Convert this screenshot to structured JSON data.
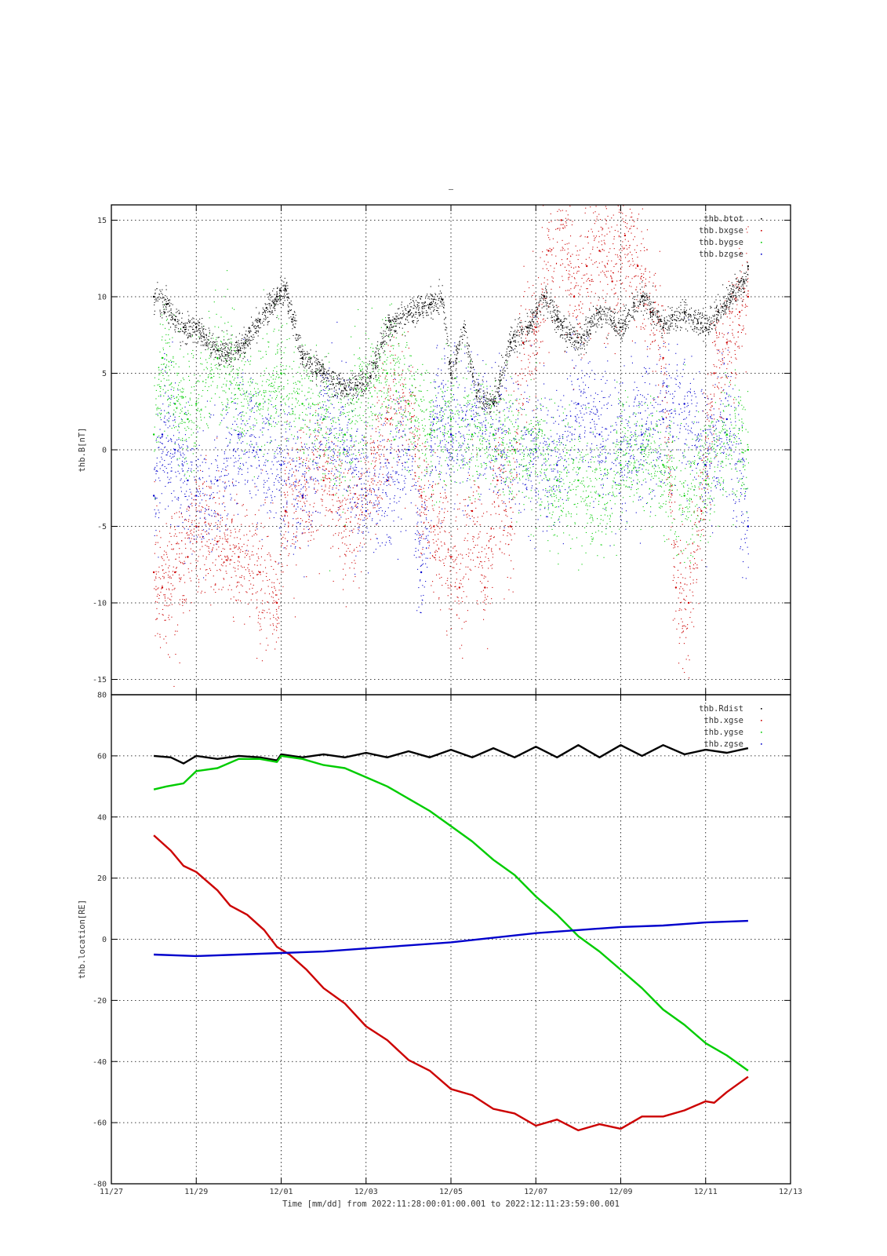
{
  "title": "–",
  "colors": {
    "btot": "#000000",
    "bxgse": "#cc0000",
    "bygse": "#00cc00",
    "bzgse": "#0000cc",
    "Rdist": "#000000",
    "xgse": "#cc0000",
    "ygse": "#00cc00",
    "zgse": "#0000cc"
  },
  "x_axis": {
    "label": "Time [mm/dd]  from 2022:11:28:00:01:00.001  to  2022:12:11:23:59:00.001",
    "ticks": [
      {
        "day": -1,
        "label": "11/27"
      },
      {
        "day": 1,
        "label": "11/29"
      },
      {
        "day": 3,
        "label": "12/01"
      },
      {
        "day": 5,
        "label": "12/03"
      },
      {
        "day": 7,
        "label": "12/05"
      },
      {
        "day": 9,
        "label": "12/07"
      },
      {
        "day": 11,
        "label": "12/09"
      },
      {
        "day": 13,
        "label": "12/11"
      },
      {
        "day": 15,
        "label": "12/13"
      }
    ]
  },
  "chart_data": [
    {
      "type": "scatter",
      "ylabel": "thb.B[nT]",
      "ylim": [
        -16,
        16
      ],
      "yticks": [
        15,
        10,
        5,
        0,
        -5,
        -10,
        -15
      ],
      "grid": true,
      "legend_position": "top-right",
      "series": [
        {
          "name": "thb.btot",
          "key": "btot",
          "x": [
            0,
            0.3,
            0.5,
            0.7,
            1.0,
            1.5,
            2.0,
            2.5,
            2.9,
            3.1,
            3.5,
            4.0,
            4.5,
            4.8,
            5.1,
            5.5,
            6.0,
            6.5,
            6.8,
            7.0,
            7.3,
            7.6,
            8.0,
            8.4,
            8.8,
            9.2,
            9.5,
            10.0,
            10.5,
            11.0,
            11.5,
            12.0,
            12.5,
            13.0,
            13.3,
            13.6,
            13.9,
            14.0
          ],
          "values": [
            10,
            9.5,
            8.5,
            8,
            8,
            6.5,
            6.5,
            8.5,
            10,
            10.5,
            6,
            5,
            4,
            4.2,
            4.8,
            8,
            9,
            9.5,
            9.8,
            5,
            8,
            3.5,
            3,
            7,
            8,
            10,
            8.5,
            7,
            9,
            8,
            10,
            8,
            9,
            8,
            9,
            10,
            11,
            12
          ]
        },
        {
          "name": "thb.bxgse",
          "key": "bxgse",
          "x": [
            0,
            0.2,
            0.5,
            0.8,
            1.0,
            1.5,
            2.0,
            2.5,
            2.9,
            3.1,
            3.5,
            4.0,
            4.5,
            5.0,
            5.5,
            6.0,
            6.3,
            6.6,
            7.0,
            7.2,
            7.5,
            7.8,
            8.1,
            8.4,
            8.7,
            9.0,
            9.3,
            9.6,
            9.9,
            10.2,
            10.5,
            10.8,
            11.1,
            11.4,
            11.7,
            12.0,
            12.3,
            12.6,
            12.9,
            13.2,
            13.5,
            13.8,
            14.0
          ],
          "values": [
            -8,
            -9,
            -8,
            -7,
            -5,
            -6,
            -7,
            -8,
            -10,
            -4,
            -3,
            -2,
            -5,
            -3,
            2,
            3,
            -3,
            -5,
            -7,
            -9,
            -4,
            -9,
            -2,
            -5,
            7,
            8,
            13,
            15,
            10,
            12,
            13,
            11,
            14,
            12,
            9,
            6,
            -9,
            -10,
            -4,
            5,
            7,
            9,
            10
          ]
        },
        {
          "name": "thb.bygse",
          "key": "bygse",
          "x": [
            0,
            0.2,
            0.5,
            0.8,
            1.0,
            1.5,
            2.0,
            2.5,
            3.0,
            3.5,
            4.0,
            4.5,
            5.0,
            5.5,
            6.0,
            6.5,
            7.0,
            7.5,
            8.0,
            8.5,
            9.0,
            9.5,
            10.0,
            10.5,
            11.0,
            11.5,
            12.0,
            12.5,
            13.0,
            13.5,
            14.0
          ],
          "values": [
            1,
            6,
            3,
            2,
            3,
            6,
            4,
            3,
            5,
            3,
            2,
            1,
            4,
            5,
            3,
            1,
            2,
            1,
            1,
            0,
            0,
            -2,
            -2,
            -3,
            -1,
            0,
            -1,
            -3,
            -2,
            1,
            0
          ]
        },
        {
          "name": "thb.bzgse",
          "key": "bzgse",
          "x": [
            0,
            0.2,
            0.5,
            0.8,
            1.0,
            1.5,
            2.0,
            2.5,
            3.0,
            3.5,
            4.0,
            4.5,
            5.0,
            5.5,
            6.0,
            6.3,
            6.6,
            7.0,
            7.5,
            8.0,
            8.5,
            9.0,
            9.5,
            10.0,
            10.5,
            11.0,
            11.5,
            12.0,
            12.5,
            13.0,
            13.5,
            14.0
          ],
          "values": [
            -3,
            1,
            0,
            -2,
            -3,
            -2,
            1,
            0,
            -1,
            -3,
            2,
            0,
            -4,
            -2,
            0,
            -8,
            2,
            1,
            2,
            1,
            0,
            0,
            -1,
            3,
            1,
            0,
            1,
            2,
            3,
            -1,
            2,
            -5
          ]
        }
      ]
    },
    {
      "type": "line",
      "ylabel": "thb.location[RE]",
      "ylim": [
        -80,
        80
      ],
      "yticks": [
        80,
        60,
        40,
        20,
        0,
        -20,
        -40,
        -60,
        -80
      ],
      "grid": true,
      "legend_position": "top-right",
      "series": [
        {
          "name": "thb.Rdist",
          "key": "Rdist",
          "x": [
            0,
            0.4,
            0.7,
            1.0,
            1.5,
            2.0,
            2.5,
            2.9,
            3.0,
            3.5,
            4.0,
            4.5,
            5.0,
            5.5,
            6.0,
            6.5,
            7.0,
            7.5,
            8.0,
            8.5,
            9.0,
            9.5,
            10.0,
            10.5,
            11.0,
            11.5,
            12.0,
            12.5,
            13.0,
            13.5,
            14.0
          ],
          "values": [
            60,
            59.5,
            57.5,
            60,
            59,
            60,
            59.5,
            58.5,
            60.5,
            59.5,
            60.5,
            59.5,
            61,
            59.5,
            61.5,
            59.5,
            62,
            59.5,
            62.5,
            59.5,
            63,
            59.5,
            63.5,
            59.5,
            63.5,
            60,
            63.5,
            60.5,
            62,
            61,
            62.5
          ]
        },
        {
          "name": "thb.xgse",
          "key": "xgse",
          "x": [
            0,
            0.4,
            0.7,
            1.0,
            1.5,
            1.8,
            2.2,
            2.6,
            2.9,
            3.2,
            3.6,
            4.0,
            4.5,
            5.0,
            5.5,
            6.0,
            6.5,
            7.0,
            7.5,
            8.0,
            8.5,
            9.0,
            9.5,
            10.0,
            10.5,
            11.0,
            11.5,
            12.0,
            12.5,
            13.0,
            13.2,
            13.5,
            14.0
          ],
          "values": [
            34,
            29,
            24,
            22,
            16,
            11,
            8,
            3,
            -2.5,
            -5,
            -10,
            -16,
            -21,
            -28.5,
            -33,
            -39.5,
            -43,
            -49,
            -51,
            -55.5,
            -57,
            -61,
            -59,
            -62.5,
            -60.5,
            -62,
            -58,
            -58,
            -56,
            -53,
            -53.5,
            -50,
            -45
          ]
        },
        {
          "name": "thb.ygse",
          "key": "ygse",
          "x": [
            0,
            0.3,
            0.7,
            1.0,
            1.5,
            2.0,
            2.5,
            2.9,
            3.0,
            3.5,
            4.0,
            4.5,
            5.0,
            5.5,
            6.0,
            6.5,
            7.0,
            7.5,
            8.0,
            8.5,
            9.0,
            9.5,
            10.0,
            10.5,
            11.0,
            11.5,
            12.0,
            12.5,
            13.0,
            13.5,
            14.0
          ],
          "values": [
            49,
            50,
            51,
            55,
            56,
            59,
            59,
            58,
            60,
            59,
            57,
            56,
            53,
            50,
            46,
            42,
            37,
            32,
            26,
            21,
            14,
            8,
            1,
            -4,
            -10,
            -16,
            -23,
            -28,
            -34,
            -38,
            -43
          ]
        },
        {
          "name": "thb.zgse",
          "key": "zgse",
          "x": [
            0,
            1,
            2,
            3,
            4,
            5,
            6,
            7,
            8,
            9,
            10,
            11,
            12,
            13,
            14
          ],
          "values": [
            -5,
            -5.5,
            -5,
            -4.5,
            -4,
            -3,
            -2,
            -1,
            0.5,
            2,
            3,
            4,
            4.5,
            5.5,
            6
          ]
        }
      ]
    }
  ]
}
